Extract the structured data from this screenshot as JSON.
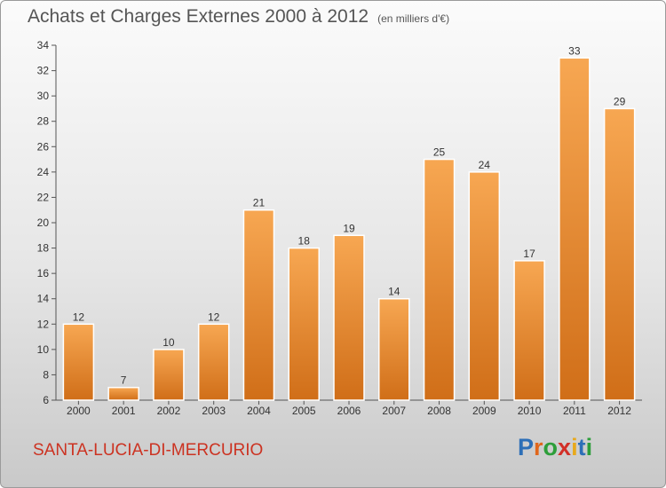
{
  "header": {
    "title": "Achats et Charges Externes 2000 à 2012",
    "subtitle": "(en milliers d'€)"
  },
  "footer": {
    "commune": "SANTA-LUCIA-DI-MERCURIO",
    "logo": "Proxiti"
  },
  "colors": {
    "bar_light": "#f7a752",
    "bar_dark": "#d06e18",
    "commune_text": "#cc3322"
  },
  "chart_data": {
    "type": "bar",
    "title": "Achats et Charges Externes 2000 à 2012",
    "subtitle": "(en milliers d'€)",
    "categories": [
      "2000",
      "2001",
      "2002",
      "2003",
      "2004",
      "2005",
      "2006",
      "2007",
      "2008",
      "2009",
      "2010",
      "2011",
      "2012"
    ],
    "values": [
      12,
      7,
      10,
      12,
      21,
      18,
      19,
      14,
      25,
      24,
      17,
      33,
      29
    ],
    "ylim": [
      6,
      34
    ],
    "yticks": [
      6,
      8,
      10,
      12,
      14,
      16,
      18,
      20,
      22,
      24,
      26,
      28,
      30,
      32,
      34
    ],
    "grid": false,
    "legend": "none",
    "xlabel": "",
    "ylabel": ""
  }
}
